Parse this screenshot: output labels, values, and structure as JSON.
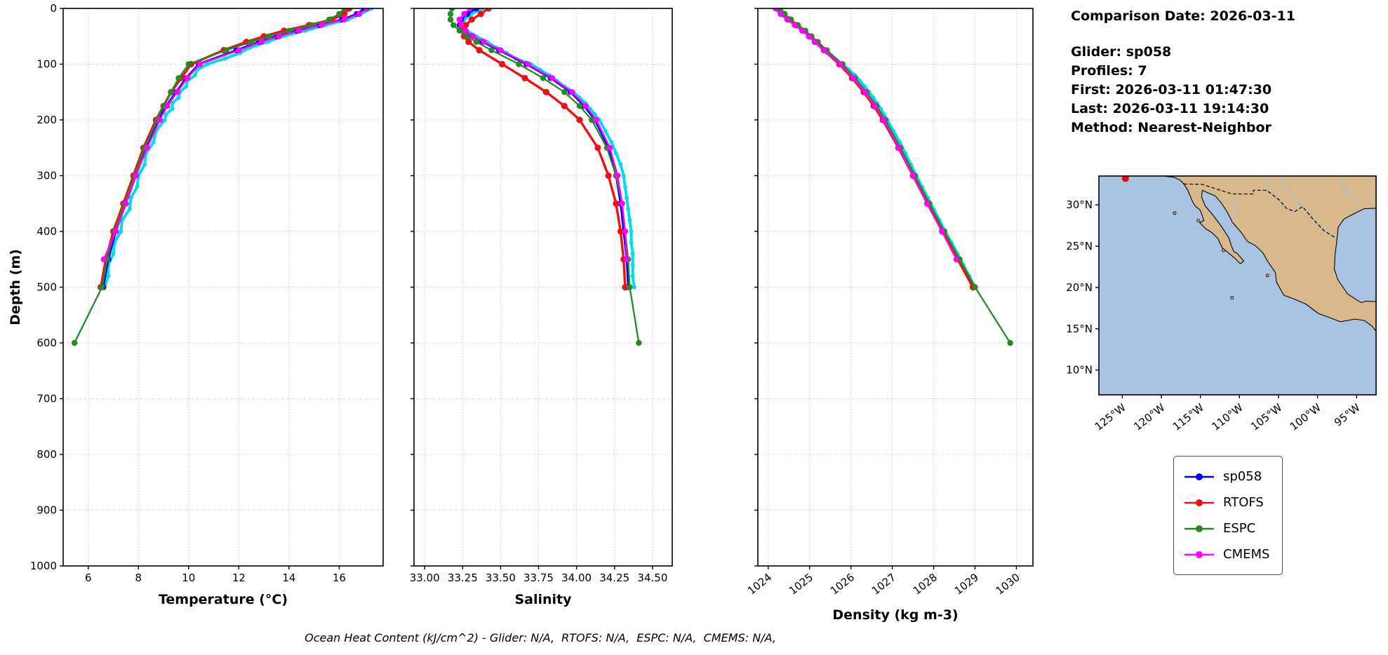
{
  "info_panel": {
    "comparison_date": "Comparison Date: 2026-03-11",
    "glider": "Glider: sp058",
    "profiles": "Profiles: 7",
    "first": "First: 2026-03-11 01:47:30",
    "last": "Last: 2026-03-11 19:14:30",
    "method": "Method: Nearest-Neighbor"
  },
  "footer": {
    "text": "Ocean Heat Content (kJ/cm^2) - Glider: N/A,  RTOFS: N/A,  ESPC: N/A,  CMEMS: N/A,"
  },
  "legend": {
    "items": [
      {
        "label": "sp058",
        "color": "#0000ff"
      },
      {
        "label": "RTOFS",
        "color": "#ee1111"
      },
      {
        "label": "ESPC",
        "color": "#228B22"
      },
      {
        "label": "CMEMS",
        "color": "#ff00ff"
      }
    ]
  },
  "chart_data": {
    "type": "line",
    "description": "Glider vs model vertical ocean profiles (depth increases downward)",
    "ylim": [
      0,
      1000
    ],
    "yticks": [
      0,
      100,
      200,
      300,
      400,
      500,
      600,
      700,
      800,
      900,
      1000
    ],
    "grid": true,
    "charts": [
      {
        "value_key": "temperature",
        "xlabel": "Temperature (°C)",
        "ylabel": "Depth (m)",
        "xlim": [
          5.0,
          17.75
        ],
        "xticks": [
          6,
          8,
          10,
          12,
          14,
          16
        ],
        "xtick_labels": [
          "6",
          "8",
          "10",
          "12",
          "14",
          "16"
        ],
        "xtick_rotation": 0,
        "show_ytick_labels": true
      },
      {
        "value_key": "salinity",
        "xlabel": "Salinity",
        "ylabel": "",
        "xlim": [
          32.93,
          34.63
        ],
        "xticks": [
          33.0,
          33.25,
          33.5,
          33.75,
          34.0,
          34.25,
          34.5
        ],
        "xtick_labels": [
          "33.00",
          "33.25",
          "33.50",
          "33.75",
          "34.00",
          "34.25",
          "34.50"
        ],
        "xtick_rotation": 0,
        "show_ytick_labels": false
      },
      {
        "value_key": "density",
        "xlabel": "Density (kg m-3)",
        "ylabel": "",
        "xlim": [
          1023.75,
          1030.4
        ],
        "xticks": [
          1024,
          1025,
          1026,
          1027,
          1028,
          1029,
          1030
        ],
        "xtick_labels": [
          "1024",
          "1025",
          "1026",
          "1027",
          "1028",
          "1029",
          "1030"
        ],
        "xtick_rotation": -38,
        "show_ytick_labels": false
      }
    ],
    "series": [
      {
        "name": "glider-raw",
        "color": "#00dde6",
        "lw": 4,
        "ms": 3,
        "depths": [
          0,
          10,
          20,
          30,
          40,
          50,
          60,
          70,
          80,
          90,
          100,
          110,
          120,
          130,
          140,
          150,
          160,
          170,
          180,
          190,
          200,
          220,
          240,
          260,
          280,
          300,
          320,
          340,
          360,
          380,
          400,
          420,
          440,
          460,
          480,
          500
        ],
        "temperature": [
          17.3,
          16.85,
          16.35,
          15.45,
          14.65,
          13.75,
          13.15,
          12.45,
          12.05,
          11.45,
          10.75,
          10.35,
          10.25,
          9.95,
          9.9,
          9.65,
          9.6,
          9.35,
          9.35,
          9.1,
          9.05,
          8.7,
          8.6,
          8.3,
          8.25,
          8.0,
          7.95,
          7.7,
          7.65,
          7.35,
          7.3,
          7.05,
          7.0,
          6.8,
          6.8,
          6.65
        ],
        "salinity": [
          33.38,
          33.31,
          33.26,
          33.25,
          33.28,
          33.34,
          33.41,
          33.47,
          33.54,
          33.6,
          33.7,
          33.76,
          33.82,
          33.87,
          33.92,
          33.98,
          34.02,
          34.06,
          34.09,
          34.12,
          34.15,
          34.19,
          34.23,
          34.26,
          34.29,
          34.31,
          34.32,
          34.33,
          34.34,
          34.35,
          34.36,
          34.36,
          34.37,
          34.37,
          34.37,
          34.38
        ],
        "density": [
          1024.15,
          1024.3,
          1024.47,
          1024.65,
          1024.84,
          1025.01,
          1025.17,
          1025.3,
          1025.43,
          1025.58,
          1025.8,
          1025.95,
          1026.1,
          1026.22,
          1026.33,
          1026.44,
          1026.54,
          1026.63,
          1026.72,
          1026.8,
          1026.88,
          1027.03,
          1027.18,
          1027.32,
          1027.45,
          1027.58,
          1027.72,
          1027.86,
          1028.0,
          1028.14,
          1028.28,
          1028.43,
          1028.58,
          1028.72,
          1028.86,
          1029.0
        ]
      },
      {
        "name": "sp058",
        "color": "#0000ff",
        "lw": 2.8,
        "ms": 4.2,
        "depths": [
          0,
          10,
          20,
          30,
          40,
          50,
          60,
          75,
          100,
          125,
          150,
          175,
          200,
          250,
          300,
          350,
          400,
          450,
          500
        ],
        "temperature": [
          17.0,
          16.7,
          16.1,
          15.2,
          14.3,
          13.5,
          12.8,
          11.9,
          10.4,
          9.9,
          9.5,
          9.1,
          8.8,
          8.3,
          7.9,
          7.5,
          7.1,
          6.8,
          6.6
        ],
        "salinity": [
          33.34,
          33.28,
          33.24,
          33.23,
          33.26,
          33.31,
          33.38,
          33.49,
          33.67,
          33.83,
          33.96,
          34.05,
          34.12,
          34.21,
          34.26,
          34.29,
          34.31,
          34.33,
          34.34
        ],
        "density": [
          1024.2,
          1024.32,
          1024.48,
          1024.66,
          1024.84,
          1025.0,
          1025.15,
          1025.38,
          1025.76,
          1026.08,
          1026.36,
          1026.6,
          1026.81,
          1027.18,
          1027.52,
          1027.86,
          1028.22,
          1028.6,
          1028.98
        ]
      },
      {
        "name": "RTOFS",
        "color": "#ee1111",
        "lw": 3.4,
        "ms": 4.6,
        "depths": [
          0,
          10,
          20,
          30,
          40,
          50,
          60,
          75,
          100,
          125,
          150,
          175,
          200,
          250,
          300,
          350,
          400,
          450,
          500
        ],
        "temperature": [
          16.4,
          16.2,
          15.7,
          14.8,
          13.8,
          13.0,
          12.3,
          11.4,
          10.1,
          9.7,
          9.3,
          9.0,
          8.7,
          8.2,
          7.8,
          7.4,
          7.0,
          6.7,
          6.5
        ],
        "salinity": [
          33.42,
          33.37,
          33.31,
          33.27,
          33.25,
          33.26,
          33.29,
          33.36,
          33.51,
          33.66,
          33.8,
          33.92,
          34.02,
          34.14,
          34.21,
          34.26,
          34.29,
          34.31,
          34.32
        ],
        "density": [
          1024.28,
          1024.38,
          1024.52,
          1024.68,
          1024.84,
          1024.99,
          1025.13,
          1025.35,
          1025.72,
          1026.03,
          1026.31,
          1026.55,
          1026.77,
          1027.15,
          1027.5,
          1027.85,
          1028.21,
          1028.58,
          1028.95
        ]
      },
      {
        "name": "ESPC",
        "color": "#228B22",
        "lw": 2.3,
        "ms": 4.2,
        "depths": [
          0,
          10,
          20,
          30,
          40,
          50,
          60,
          75,
          100,
          125,
          150,
          175,
          200,
          250,
          300,
          350,
          400,
          450,
          500,
          600
        ],
        "temperature": [
          16.2,
          16.0,
          15.6,
          14.9,
          14.0,
          13.2,
          12.5,
          11.5,
          10.0,
          9.6,
          9.3,
          9.0,
          8.75,
          8.25,
          7.85,
          7.45,
          7.05,
          6.75,
          6.55,
          5.45
        ],
        "salinity": [
          33.18,
          33.17,
          33.17,
          33.19,
          33.23,
          33.28,
          33.34,
          33.44,
          33.62,
          33.78,
          33.92,
          34.02,
          34.1,
          34.2,
          34.26,
          34.3,
          34.32,
          34.34,
          34.35,
          34.41
        ],
        "density": [
          1024.3,
          1024.4,
          1024.55,
          1024.72,
          1024.9,
          1025.05,
          1025.2,
          1025.42,
          1025.8,
          1026.1,
          1026.38,
          1026.62,
          1026.83,
          1027.2,
          1027.55,
          1027.9,
          1028.26,
          1028.63,
          1029.0,
          1029.85
        ]
      },
      {
        "name": "CMEMS",
        "color": "#ff00ff",
        "lw": 2.3,
        "ms": 4.2,
        "depths": [
          0,
          10,
          20,
          30,
          40,
          50,
          60,
          75,
          100,
          125,
          150,
          175,
          200,
          250,
          300,
          350,
          400,
          450
        ],
        "temperature": [
          17.1,
          16.8,
          16.2,
          15.3,
          14.4,
          13.6,
          12.9,
          12.0,
          10.45,
          9.95,
          9.55,
          9.15,
          8.85,
          8.35,
          7.9,
          7.5,
          7.1,
          6.62
        ],
        "salinity": [
          33.3,
          33.26,
          33.23,
          33.24,
          33.27,
          33.32,
          33.39,
          33.5,
          33.68,
          33.84,
          33.97,
          34.06,
          34.13,
          34.22,
          34.27,
          34.3,
          34.32,
          34.33
        ],
        "density": [
          1024.18,
          1024.3,
          1024.46,
          1024.64,
          1024.82,
          1024.98,
          1025.13,
          1025.36,
          1025.74,
          1026.06,
          1026.34,
          1026.58,
          1026.79,
          1027.16,
          1027.5,
          1027.84,
          1028.2,
          1028.55
        ]
      }
    ]
  },
  "map": {
    "ocean_color": "#a9c3e2",
    "land_color": "#d9b98c",
    "river_color": "#9dbfe6",
    "extent": {
      "lon_min": -128,
      "lon_max": -92.5,
      "lat_min": 7,
      "lat_max": 33.5
    },
    "lat_ticks": [
      {
        "v": 30,
        "label": "30°N"
      },
      {
        "v": 25,
        "label": "25°N"
      },
      {
        "v": 20,
        "label": "20°N"
      },
      {
        "v": 15,
        "label": "15°N"
      },
      {
        "v": 10,
        "label": "10°N"
      }
    ],
    "lon_ticks": [
      {
        "v": -125,
        "label": "125°W"
      },
      {
        "v": -120,
        "label": "120°W"
      },
      {
        "v": -115,
        "label": "115°W"
      },
      {
        "v": -110,
        "label": "110°W"
      },
      {
        "v": -105,
        "label": "105°W"
      },
      {
        "v": -100,
        "label": "100°W"
      },
      {
        "v": -95,
        "label": "95°W"
      }
    ],
    "marker": {
      "lon": -124.6,
      "lat": 33.2,
      "color": "#ff0000"
    },
    "land": [
      [
        [
          -119.8,
          33.5
        ],
        [
          -118.4,
          33.35
        ],
        [
          -117.6,
          33.0
        ],
        [
          -117.12,
          32.53
        ],
        [
          -116.65,
          31.85
        ],
        [
          -116.0,
          30.4
        ],
        [
          -115.7,
          29.9
        ],
        [
          -115.0,
          29.35
        ],
        [
          -114.55,
          28.1
        ],
        [
          -115.08,
          27.85
        ],
        [
          -114.3,
          27.1
        ],
        [
          -113.6,
          26.7
        ],
        [
          -112.8,
          26.0
        ],
        [
          -112.2,
          24.8
        ],
        [
          -110.6,
          23.55
        ],
        [
          -109.9,
          22.88
        ],
        [
          -109.45,
          23.2
        ],
        [
          -110.3,
          24.15
        ],
        [
          -110.7,
          24.3
        ],
        [
          -111.05,
          25.1
        ],
        [
          -111.35,
          26.0
        ],
        [
          -112.27,
          27.34
        ],
        [
          -113.1,
          28.4
        ],
        [
          -113.55,
          28.95
        ],
        [
          -114.4,
          29.9
        ],
        [
          -114.85,
          31.0
        ],
        [
          -114.75,
          31.78
        ],
        [
          -114.0,
          31.45
        ],
        [
          -113.1,
          31.1
        ],
        [
          -112.3,
          30.2
        ],
        [
          -111.6,
          29.2
        ],
        [
          -110.9,
          27.9
        ],
        [
          -109.8,
          26.7
        ],
        [
          -109.0,
          25.6
        ],
        [
          -108.0,
          25.1
        ],
        [
          -107.0,
          24.2
        ],
        [
          -106.4,
          23.2
        ],
        [
          -105.4,
          21.8
        ],
        [
          -105.25,
          20.65
        ],
        [
          -104.3,
          19.05
        ],
        [
          -103.0,
          18.6
        ],
        [
          -101.5,
          18.0
        ],
        [
          -99.9,
          16.85
        ],
        [
          -98.3,
          16.3
        ],
        [
          -97.07,
          15.85
        ],
        [
          -95.2,
          16.17
        ],
        [
          -94.0,
          16.0
        ],
        [
          -93.0,
          15.3
        ],
        [
          -92.5,
          14.7
        ],
        [
          -92.5,
          18.3
        ],
        [
          -93.8,
          18.35
        ],
        [
          -94.4,
          18.15
        ],
        [
          -95.3,
          18.7
        ],
        [
          -96.13,
          19.2
        ],
        [
          -97.4,
          20.95
        ],
        [
          -97.85,
          22.25
        ],
        [
          -97.77,
          23.8
        ],
        [
          -97.5,
          25.9
        ],
        [
          -97.35,
          27.3
        ],
        [
          -96.6,
          28.3
        ],
        [
          -95.3,
          28.95
        ],
        [
          -94.0,
          29.55
        ],
        [
          -92.5,
          29.6
        ],
        [
          -92.5,
          33.5
        ]
      ]
    ],
    "islands": [
      [
        -118.3,
        29.0
      ],
      [
        -115.25,
        28.1
      ],
      [
        -110.95,
        18.75
      ],
      [
        -106.4,
        21.45
      ],
      [
        -112.05,
        24.5
      ]
    ],
    "border_dashed": [
      [
        -117.12,
        32.53
      ],
      [
        -114.8,
        32.5
      ],
      [
        -111.0,
        31.33
      ],
      [
        -108.2,
        31.33
      ],
      [
        -108.2,
        31.78
      ],
      [
        -106.5,
        31.78
      ],
      [
        -104.9,
        30.6
      ],
      [
        -104.0,
        29.6
      ],
      [
        -102.9,
        29.2
      ],
      [
        -101.9,
        29.8
      ],
      [
        -100.6,
        28.3
      ],
      [
        -99.2,
        26.9
      ],
      [
        -97.6,
        25.95
      ]
    ],
    "rivers": [
      [
        [
          -106.7,
          33.5
        ],
        [
          -106.4,
          32.6
        ],
        [
          -106.5,
          31.8
        ]
      ],
      [
        [
          -104.6,
          33.5
        ],
        [
          -103.6,
          31.6
        ],
        [
          -102.5,
          30.3
        ],
        [
          -101.9,
          29.82
        ]
      ],
      [
        [
          -97.2,
          33.5
        ],
        [
          -96.2,
          31.3
        ],
        [
          -94.8,
          29.9
        ]
      ],
      [
        [
          -111.0,
          30.5
        ],
        [
          -110.2,
          29.3
        ],
        [
          -110.9,
          27.95
        ]
      ],
      [
        [
          -106.5,
          31.78
        ],
        [
          -104.9,
          30.6
        ],
        [
          -104.0,
          29.6
        ],
        [
          -102.9,
          29.2
        ],
        [
          -101.9,
          29.8
        ],
        [
          -100.6,
          28.3
        ],
        [
          -99.2,
          26.9
        ],
        [
          -97.6,
          25.95
        ]
      ]
    ]
  }
}
